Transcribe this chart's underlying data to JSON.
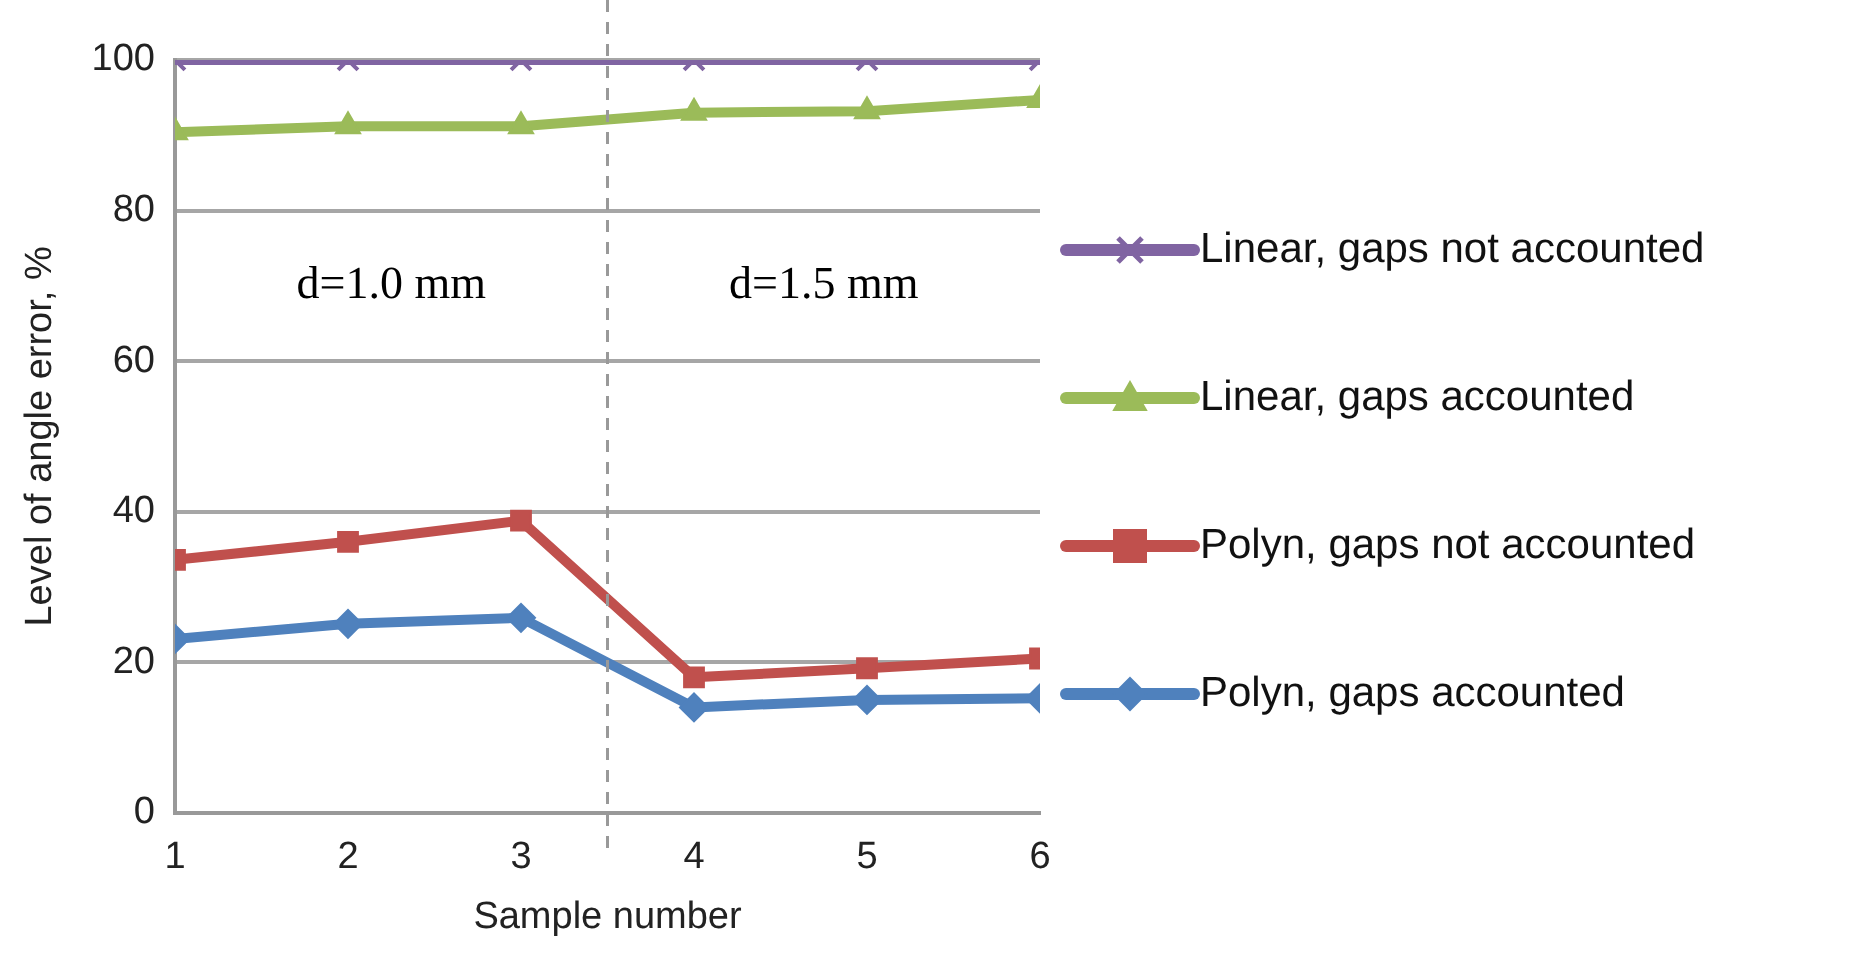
{
  "chart_data": {
    "type": "line",
    "xlabel": "Sample number",
    "ylabel": "Level of angle error, %",
    "x": [
      1,
      2,
      3,
      4,
      5,
      6
    ],
    "xlim": [
      1,
      6
    ],
    "xticks": [
      1,
      2,
      3,
      4,
      5,
      6
    ],
    "ylim": [
      0,
      100
    ],
    "yticks": [
      0,
      20,
      40,
      60,
      80,
      100
    ],
    "grid": "y",
    "legend": "right",
    "series": [
      {
        "name": "Linear, gaps not accounted",
        "color": "#8064a2",
        "marker": "cross",
        "values": [
          100,
          100,
          100,
          100,
          100,
          100
        ]
      },
      {
        "name": "Linear, gaps accounted",
        "color": "#9bbb59",
        "marker": "triangle",
        "values": [
          90.4,
          91.2,
          91.2,
          93.0,
          93.2,
          94.7
        ]
      },
      {
        "name": "Polyn, gaps not accounted",
        "color": "#c0504d",
        "marker": "square",
        "values": [
          33.6,
          36.0,
          38.8,
          18.0,
          19.2,
          20.5
        ]
      },
      {
        "name": "Polyn, gaps accounted",
        "color": "#4f81bd",
        "marker": "diamond",
        "values": [
          23.1,
          25.1,
          25.9,
          14.0,
          15.0,
          15.2
        ]
      }
    ],
    "ref_lines": [
      {
        "axis": "x",
        "value": 3.5,
        "color": "#999999",
        "line_style": "dashed"
      }
    ],
    "annotations": [
      "d=1.0 mm",
      "d=1.5 mm"
    ]
  }
}
